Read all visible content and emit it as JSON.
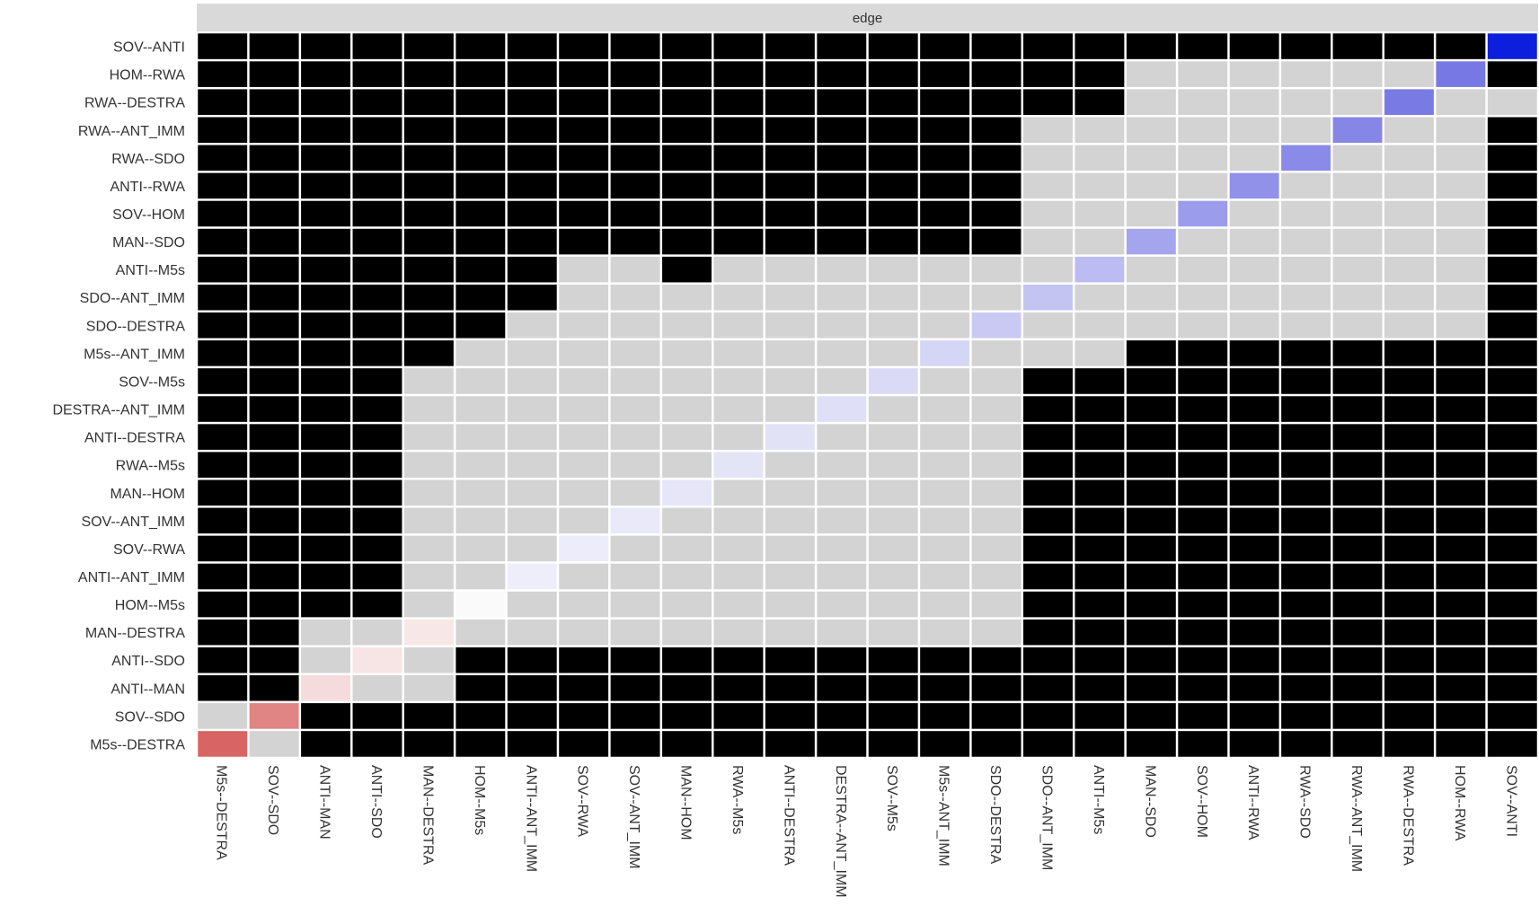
{
  "chart_data": {
    "type": "heatmap",
    "facet_label": "edge",
    "edges": [
      "M5s--DESTRA",
      "SOV--SDO",
      "ANTI--MAN",
      "ANTI--SDO",
      "MAN--DESTRA",
      "HOM--M5s",
      "ANTI--ANT_IMM",
      "SOV--RWA",
      "SOV--ANT_IMM",
      "MAN--HOM",
      "RWA--M5s",
      "ANTI--DESTRA",
      "DESTRA--ANT_IMM",
      "SOV--M5s",
      "M5s--ANT_IMM",
      "SDO--DESTRA",
      "SDO--ANT_IMM",
      "ANTI--M5s",
      "MAN--SDO",
      "SOV--HOM",
      "ANTI--RWA",
      "RWA--SDO",
      "RWA--ANT_IMM",
      "RWA--DESTRA",
      "HOM--RWA",
      "SOV--ANTI"
    ],
    "diagonal_colors": [
      "#d96464",
      "#e08484",
      "#f5dcdc",
      "#f7e4e4",
      "#f7e7e7",
      "#fafafa",
      "#eeeefb",
      "#ececfa",
      "#e9e9f9",
      "#e6e6f8",
      "#e4e4f7",
      "#e2e2f7",
      "#dfdff7",
      "#dadaf7",
      "#d5d5f6",
      "#c9c9f4",
      "#c4c4f3",
      "#bcbcf2",
      "#a5a5ee",
      "#9c9cec",
      "#9191ea",
      "#8a8ae8",
      "#8686e6",
      "#7a7ae4",
      "#7878e4",
      "#0b1fdc"
    ],
    "colors": {
      "significant": "#000000",
      "not_significant": "#d3d3d3",
      "strip": "#d9d9d9"
    },
    "not_significant_ranges": [
      [
        [
          1,
          1
        ]
      ],
      [
        [
          0,
          0
        ]
      ],
      [
        [
          3,
          4
        ]
      ],
      [
        [
          2,
          2
        ],
        [
          4,
          4
        ]
      ],
      [
        [
          2,
          3
        ],
        [
          5,
          15
        ]
      ],
      [
        [
          4,
          15
        ]
      ],
      [
        [
          4,
          15
        ]
      ],
      [
        [
          4,
          15
        ]
      ],
      [
        [
          4,
          15
        ]
      ],
      [
        [
          4,
          15
        ]
      ],
      [
        [
          4,
          15
        ]
      ],
      [
        [
          4,
          15
        ]
      ],
      [
        [
          4,
          15
        ]
      ],
      [
        [
          4,
          15
        ]
      ],
      [
        [
          5,
          17
        ]
      ],
      [
        [
          6,
          24
        ]
      ],
      [
        [
          7,
          24
        ]
      ],
      [
        [
          7,
          8
        ],
        [
          10,
          24
        ]
      ],
      [
        [
          16,
          24
        ]
      ],
      [
        [
          16,
          24
        ]
      ],
      [
        [
          16,
          24
        ]
      ],
      [
        [
          16,
          24
        ]
      ],
      [
        [
          16,
          24
        ]
      ],
      [
        [
          18,
          25
        ]
      ],
      [
        [
          18,
          24
        ]
      ],
      []
    ]
  }
}
